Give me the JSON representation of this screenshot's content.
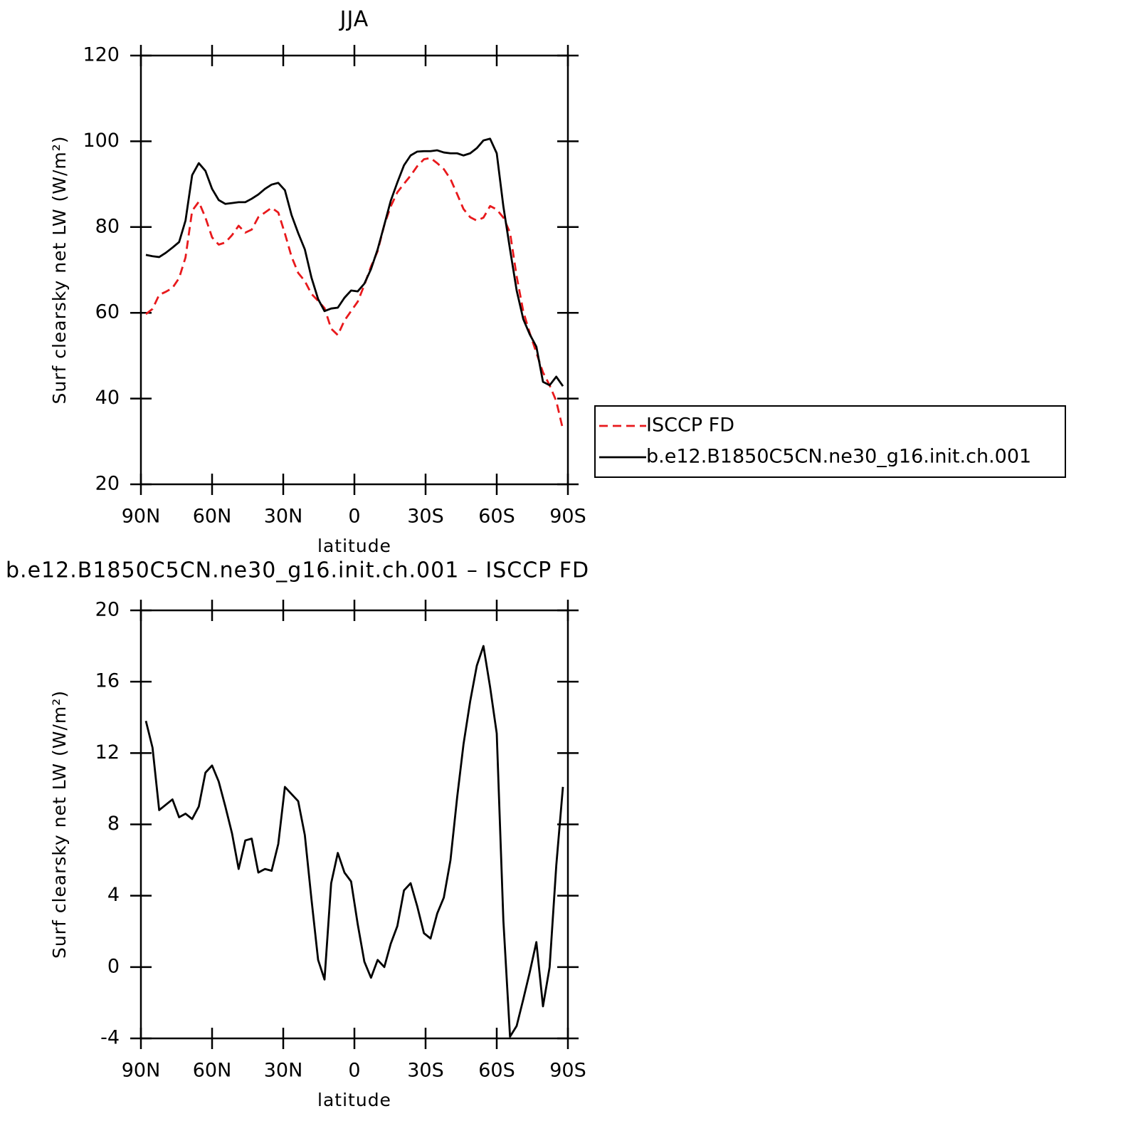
{
  "chart_data": [
    {
      "type": "line",
      "title": "JJA",
      "xlabel": "latitude",
      "ylabel": "Surf clearsky net LW (W/m²)",
      "x": [
        87.9,
        85.1,
        82.3,
        79.5,
        76.7,
        73.9,
        71.2,
        68.4,
        65.6,
        62.8,
        60.0,
        57.2,
        54.4,
        51.6,
        48.8,
        46.0,
        43.3,
        40.5,
        37.7,
        34.9,
        32.1,
        29.3,
        26.5,
        23.7,
        20.9,
        18.1,
        15.3,
        12.6,
        9.8,
        7.0,
        4.2,
        1.4,
        -1.4,
        -4.2,
        -7.0,
        -9.8,
        -12.6,
        -15.3,
        -18.1,
        -20.9,
        -23.7,
        -26.5,
        -29.3,
        -32.1,
        -34.9,
        -37.7,
        -40.5,
        -43.3,
        -46.0,
        -48.8,
        -51.6,
        -54.4,
        -57.2,
        -60.0,
        -62.8,
        -65.6,
        -68.4,
        -71.2,
        -73.9,
        -76.7,
        -79.5,
        -82.3,
        -85.1,
        -87.9
      ],
      "xlim": [
        90,
        -90
      ],
      "xticks": [
        {
          "value": 90,
          "label": "90N"
        },
        {
          "value": 60,
          "label": "60N"
        },
        {
          "value": 30,
          "label": "30N"
        },
        0,
        {
          "value": -30,
          "label": "30S"
        },
        {
          "value": -60,
          "label": "60S"
        },
        {
          "value": -90,
          "label": "90S"
        }
      ],
      "ylim": [
        20,
        120
      ],
      "yticks": [
        20,
        40,
        60,
        80,
        100,
        120
      ],
      "legend": "right",
      "series": [
        {
          "name": "ISCCP FD",
          "color": "#e8191c",
          "dash": "dashed",
          "values": [
            59.7,
            60.9,
            64.2,
            64.9,
            65.8,
            68.1,
            72.9,
            83.8,
            85.9,
            82.2,
            77.6,
            75.9,
            76.4,
            78.1,
            80.3,
            78.7,
            79.4,
            82.3,
            83.4,
            84.5,
            83.4,
            78.5,
            73.1,
            69.3,
            67.4,
            64.4,
            62.8,
            61.1,
            56.3,
            54.8,
            58.2,
            60.4,
            62.6,
            66.5,
            70.8,
            74.4,
            80.5,
            84.8,
            88.1,
            90.1,
            92.0,
            94.2,
            95.8,
            96.1,
            94.9,
            93.5,
            91.2,
            87.7,
            84.2,
            82.3,
            81.5,
            82.2,
            84.9,
            84.1,
            82.2,
            78.7,
            68.5,
            60.3,
            55.3,
            50.7,
            46.1,
            43.1,
            39.4,
            32.8
          ]
        },
        {
          "name": "b.e12.B1850C5CN.ne30_g16.init.ch.001",
          "color": "#000000",
          "dash": "solid",
          "values": [
            73.5,
            73.2,
            73.0,
            74.0,
            75.2,
            76.5,
            81.5,
            92.1,
            94.9,
            93.1,
            88.9,
            86.3,
            85.4,
            85.6,
            85.8,
            85.8,
            86.6,
            87.6,
            88.9,
            89.9,
            90.3,
            88.6,
            82.8,
            78.6,
            74.8,
            68.2,
            63.2,
            60.4,
            61.0,
            61.2,
            63.5,
            65.2,
            65.0,
            66.8,
            70.2,
            74.8,
            80.5,
            86.1,
            90.4,
            94.4,
            96.7,
            97.6,
            97.7,
            97.7,
            97.9,
            97.4,
            97.2,
            97.2,
            96.7,
            97.2,
            98.4,
            100.2,
            100.6,
            97.2,
            84.8,
            74.8,
            65.2,
            58.5,
            55.0,
            52.1,
            43.9,
            43.1,
            45.1,
            42.9
          ]
        }
      ]
    },
    {
      "type": "line",
      "title": "b.e12.B1850C5CN.ne30_g16.init.ch.001 – ISCCP FD",
      "xlabel": "latitude",
      "ylabel": "Surf clearsky net LW (W/m²)",
      "x": [
        87.9,
        85.1,
        82.3,
        79.5,
        76.7,
        73.9,
        71.2,
        68.4,
        65.6,
        62.8,
        60.0,
        57.2,
        54.4,
        51.6,
        48.8,
        46.0,
        43.3,
        40.5,
        37.7,
        34.9,
        32.1,
        29.3,
        26.5,
        23.7,
        20.9,
        18.1,
        15.3,
        12.6,
        9.8,
        7.0,
        4.2,
        1.4,
        -1.4,
        -4.2,
        -7.0,
        -9.8,
        -12.6,
        -15.3,
        -18.1,
        -20.9,
        -23.7,
        -26.5,
        -29.3,
        -32.1,
        -34.9,
        -37.7,
        -40.5,
        -43.3,
        -46.0,
        -48.8,
        -51.6,
        -54.4,
        -57.2,
        -60.0,
        -62.8,
        -65.6,
        -68.4,
        -71.2,
        -73.9,
        -76.7,
        -79.5,
        -82.3,
        -85.1,
        -87.9
      ],
      "xlim": [
        90,
        -90
      ],
      "xticks": [
        {
          "value": 90,
          "label": "90N"
        },
        {
          "value": 60,
          "label": "60N"
        },
        {
          "value": 30,
          "label": "30N"
        },
        0,
        {
          "value": -30,
          "label": "30S"
        },
        {
          "value": -60,
          "label": "60S"
        },
        {
          "value": -90,
          "label": "90S"
        }
      ],
      "ylim": [
        -4,
        20
      ],
      "yticks": [
        -4,
        0,
        4,
        8,
        12,
        16,
        20
      ],
      "series": [
        {
          "color": "#000000",
          "dash": "solid",
          "values": [
            13.8,
            12.3,
            8.8,
            9.1,
            9.4,
            8.4,
            8.6,
            8.3,
            9.0,
            10.9,
            11.3,
            10.4,
            9.0,
            7.5,
            5.5,
            7.1,
            7.2,
            5.3,
            5.5,
            5.4,
            6.9,
            10.1,
            9.7,
            9.3,
            7.4,
            3.8,
            0.4,
            -0.7,
            4.7,
            6.4,
            5.3,
            4.8,
            2.4,
            0.3,
            -0.6,
            0.4,
            0.0,
            1.3,
            2.3,
            4.3,
            4.7,
            3.4,
            1.9,
            1.6,
            3.0,
            3.9,
            6.0,
            9.5,
            12.5,
            14.9,
            16.9,
            18.0,
            15.7,
            13.1,
            2.6,
            -3.9,
            -3.3,
            -1.8,
            -0.3,
            1.4,
            -2.2,
            0.0,
            5.7,
            10.1
          ]
        }
      ]
    }
  ]
}
